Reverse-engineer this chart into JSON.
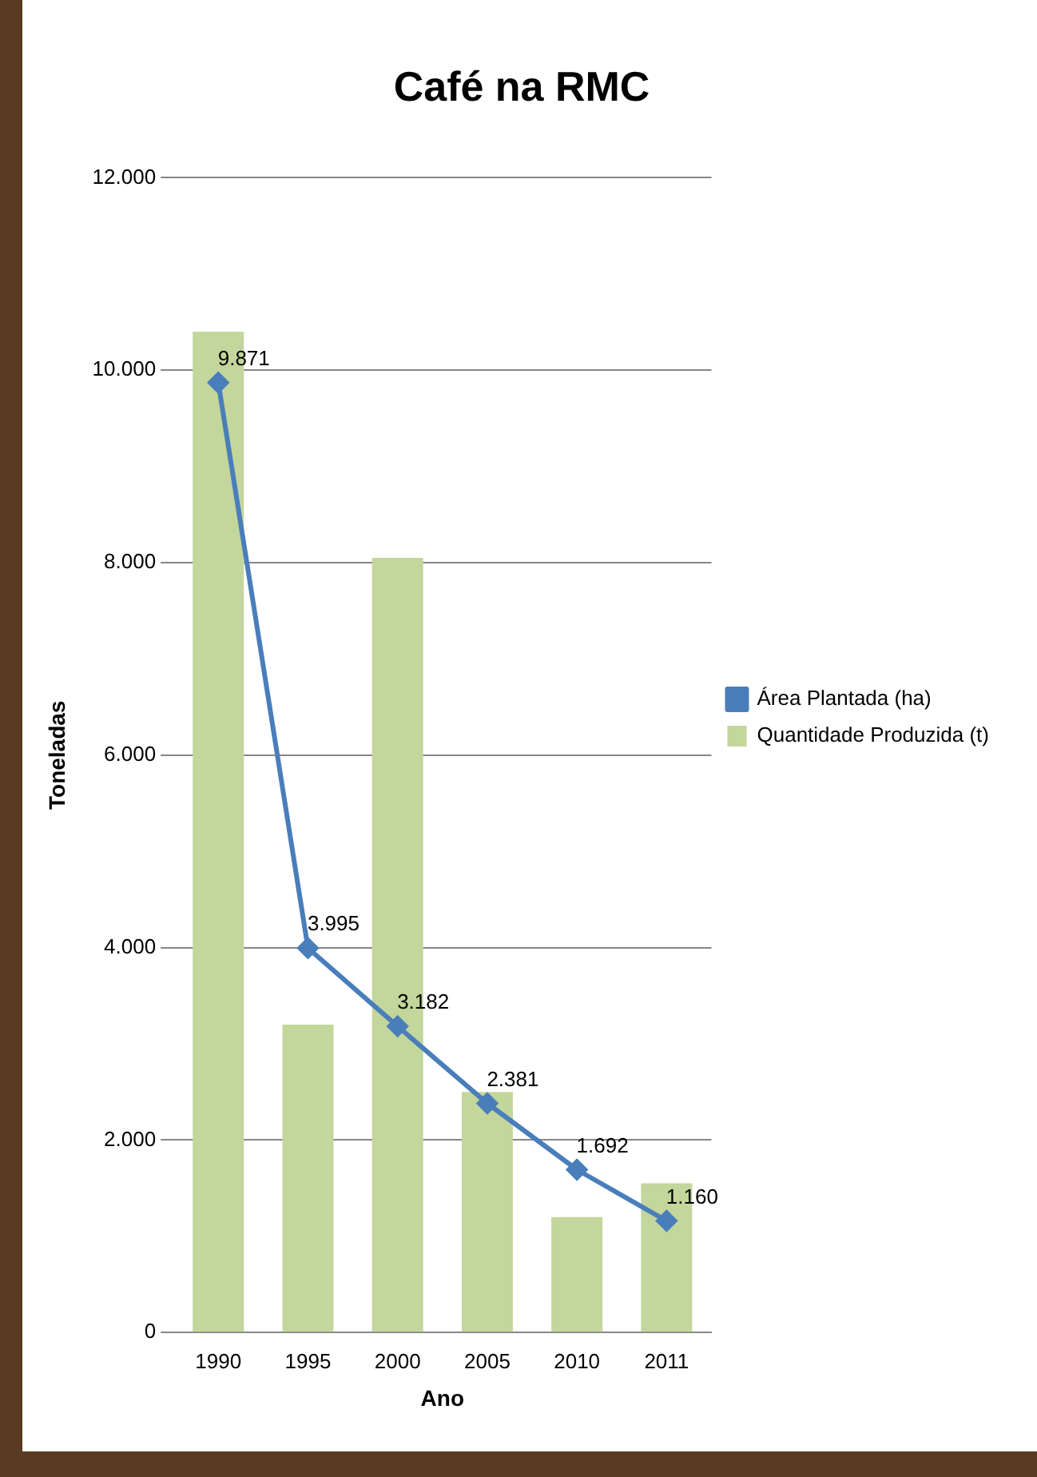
{
  "chart_data": {
    "type": "bar",
    "title": "Café na RMC",
    "xlabel": "Ano",
    "ylabel": "Toneladas",
    "categories": [
      "1990",
      "1995",
      "2000",
      "2005",
      "2010",
      "2011"
    ],
    "series": [
      {
        "name": "Quantidade Produzida (t)",
        "color": "#c3d69b",
        "values": [
          10400,
          3200,
          8050,
          2500,
          1200,
          1550
        ]
      },
      {
        "name": "Área Plantada (ha)",
        "type": "line",
        "color": "#4a7ebb",
        "values": [
          9871,
          3995,
          3182,
          2381,
          1692,
          1160
        ],
        "value_labels": [
          "9.871",
          "3.995",
          "3.182",
          "2.381",
          "1.692",
          "1.160"
        ]
      }
    ],
    "ylim": [
      0,
      12000
    ],
    "yticks": [
      {
        "value": 0,
        "label": "0"
      },
      {
        "value": 2000,
        "label": "2.000"
      },
      {
        "value": 4000,
        "label": "4.000"
      },
      {
        "value": 6000,
        "label": "6.000"
      },
      {
        "value": 8000,
        "label": "8.000"
      },
      {
        "value": 10000,
        "label": "10.000"
      },
      {
        "value": 12000,
        "label": "12.000"
      }
    ],
    "grid": "y",
    "legend": "right",
    "marker": "diamond",
    "line_style": "solid"
  }
}
